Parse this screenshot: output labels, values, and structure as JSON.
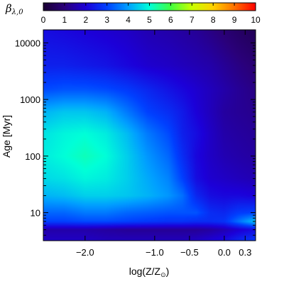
{
  "chart_data": {
    "type": "heatmap",
    "colorbar": {
      "title": "β",
      "title_sub": "λ,0",
      "ticks": [
        "0",
        "1",
        "2",
        "3",
        "4",
        "5",
        "6",
        "7",
        "8",
        "9",
        "10"
      ],
      "range": [
        0,
        10
      ],
      "colors": [
        "#1a0033",
        "#2a007a",
        "#1c00d8",
        "#0040ff",
        "#00a0ff",
        "#00ffd8",
        "#40ff40",
        "#c8ff00",
        "#ffd000",
        "#ff7000",
        "#ff0000"
      ]
    },
    "x_axis": {
      "label_main": "log(Z/Z",
      "label_sub": "⊙",
      "label_end": ")",
      "range": [
        -2.6,
        0.45
      ],
      "ticks": [
        {
          "value": -2.0,
          "label": "−2.0"
        },
        {
          "value": -1.0,
          "label": "−1.0"
        },
        {
          "value": -0.5,
          "label": "−0.5"
        },
        {
          "value": 0.0,
          "label": "0.0"
        },
        {
          "value": 0.3,
          "label": "0.3"
        }
      ]
    },
    "y_axis": {
      "label_main": "Age",
      "label_unit": "[Myr]",
      "scale": "log",
      "range": [
        3.2,
        17000
      ],
      "ticks": [
        {
          "value": 10,
          "label": "10"
        },
        {
          "value": 100,
          "label": "100"
        },
        {
          "value": 1000,
          "label": "1000"
        },
        {
          "value": 10000,
          "label": "10000"
        }
      ]
    },
    "field": {
      "x": [
        -2.6,
        -2.3,
        -2.0,
        -1.7,
        -1.4,
        -1.1,
        -0.8,
        -0.6,
        -0.4,
        -0.2,
        0.0,
        0.2,
        0.45
      ],
      "y": [
        3.2,
        5,
        7,
        10,
        20,
        40,
        100,
        250,
        600,
        1500,
        4000,
        17000
      ],
      "z": [
        [
          1.8,
          1.8,
          1.8,
          1.7,
          1.7,
          1.7,
          1.7,
          1.7,
          1.8,
          2.0,
          2.2,
          2.6,
          2.9
        ],
        [
          1.5,
          1.5,
          1.5,
          1.4,
          1.3,
          1.3,
          1.3,
          1.3,
          1.3,
          1.4,
          1.6,
          1.9,
          2.2
        ],
        [
          3.0,
          3.0,
          3.1,
          3.1,
          3.0,
          2.9,
          2.8,
          2.8,
          2.7,
          2.7,
          2.8,
          3.5,
          4.4
        ],
        [
          3.4,
          3.4,
          3.6,
          3.6,
          3.4,
          3.3,
          3.2,
          3.2,
          3.2,
          2.7,
          2.6,
          2.9,
          3.0
        ],
        [
          4.2,
          4.3,
          4.5,
          4.5,
          4.4,
          4.2,
          3.9,
          3.5,
          2.6,
          2.2,
          2.1,
          2.1,
          2.0
        ],
        [
          4.6,
          4.7,
          4.9,
          4.8,
          4.5,
          4.1,
          3.7,
          3.0,
          2.2,
          1.9,
          1.8,
          1.7,
          1.6
        ],
        [
          4.8,
          5.0,
          5.2,
          5.0,
          4.5,
          3.9,
          3.4,
          2.7,
          2.1,
          1.8,
          1.6,
          1.5,
          1.4
        ],
        [
          4.7,
          4.9,
          5.0,
          4.8,
          4.3,
          3.6,
          3.1,
          2.5,
          2.2,
          1.8,
          1.5,
          1.4,
          1.3
        ],
        [
          4.2,
          4.4,
          4.4,
          4.2,
          3.6,
          3.0,
          2.7,
          2.4,
          2.0,
          1.7,
          1.4,
          1.3,
          1.2
        ],
        [
          3.1,
          3.2,
          3.2,
          3.1,
          2.9,
          2.6,
          2.3,
          2.1,
          1.9,
          1.7,
          1.5,
          1.3,
          1.1
        ],
        [
          2.5,
          2.5,
          2.4,
          2.3,
          2.1,
          1.9,
          1.8,
          1.7,
          1.6,
          1.5,
          1.3,
          1.1,
          0.9
        ],
        [
          2.2,
          2.1,
          2.0,
          1.9,
          1.8,
          1.6,
          1.5,
          1.4,
          1.3,
          1.1,
          0.9,
          0.7,
          0.5
        ]
      ]
    }
  }
}
